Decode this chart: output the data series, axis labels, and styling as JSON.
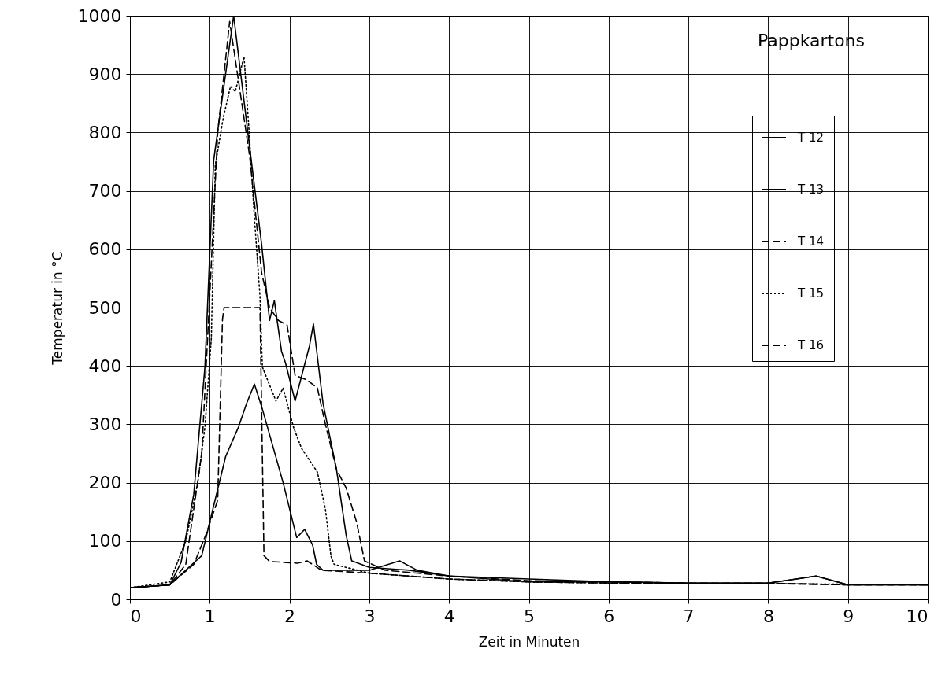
{
  "chart_data": {
    "type": "line",
    "xlabel": "Zeit in Minuten",
    "ylabel": "Temperatur in °C",
    "annotations": [
      "Pappkartons"
    ],
    "xlim": [
      0,
      10
    ],
    "xticks": [
      0,
      1,
      2,
      3,
      4,
      5,
      6,
      7,
      8,
      9,
      10
    ],
    "ylim": [
      0,
      1000
    ],
    "yticks": [
      0,
      100,
      200,
      300,
      400,
      500,
      600,
      700,
      800,
      900,
      1000
    ],
    "grid": true,
    "legend": "top right",
    "series": [
      {
        "name": "T 12",
        "color": "#000000",
        "line_style": "solid",
        "x": [
          0,
          0.5,
          0.9,
          0.97,
          1.04,
          1.2,
          1.36,
          1.46,
          1.56,
          1.66,
          1.92,
          2.09,
          2.19,
          2.29,
          2.34,
          2.42,
          3,
          3.38,
          3.6,
          4,
          4.5,
          5,
          6.2,
          7,
          8,
          8.6,
          9,
          10
        ],
        "values": [
          20,
          25,
          75,
          115,
          155,
          245,
          295,
          335,
          369,
          326,
          200,
          106,
          120,
          93,
          60,
          50,
          50,
          66,
          50,
          40,
          35,
          30,
          30,
          28,
          28,
          40,
          25,
          25
        ]
      },
      {
        "name": "T 13",
        "color": "#000000",
        "line_style": "solid",
        "x": [
          0,
          0.5,
          0.64,
          0.8,
          0.94,
          1.05,
          1.3,
          1.5,
          1.65,
          1.75,
          1.81,
          1.9,
          1.95,
          2.07,
          2.25,
          2.3,
          2.42,
          2.59,
          2.71,
          2.78,
          3,
          3.5,
          4,
          5,
          6,
          7,
          8,
          8.6,
          9,
          10
        ],
        "values": [
          20,
          25,
          63,
          180,
          398,
          753,
          1000,
          775,
          609,
          478,
          512,
          425,
          405,
          340,
          434,
          472,
          336,
          222,
          110,
          66,
          55,
          50,
          40,
          35,
          30,
          28,
          28,
          40,
          25,
          25
        ]
      },
      {
        "name": "T 14",
        "color": "#000000",
        "line_style": "dashed",
        "x": [
          0,
          0.5,
          0.7,
          0.9,
          1.0,
          1.1,
          1.25,
          1.5,
          1.65,
          1.75,
          1.86,
          1.97,
          2.07,
          2.22,
          2.35,
          2.45,
          2.59,
          2.71,
          2.84,
          2.94,
          3.2,
          4,
          5,
          6,
          7,
          8,
          9,
          10
        ],
        "values": [
          20,
          25,
          60,
          250,
          520,
          800,
          990,
          760,
          560,
          500,
          478,
          470,
          384,
          376,
          362,
          300,
          222,
          191,
          133,
          66,
          50,
          40,
          32,
          30,
          28,
          28,
          25,
          25
        ]
      },
      {
        "name": "T 15",
        "color": "#000000",
        "line_style": "dotted",
        "x": [
          0,
          0.5,
          0.7,
          0.85,
          0.94,
          1.02,
          1.07,
          1.17,
          1.26,
          1.32,
          1.43,
          1.5,
          1.56,
          1.63,
          1.66,
          1.83,
          1.92,
          2.05,
          2.15,
          2.35,
          2.45,
          2.52,
          2.56,
          3,
          4,
          5,
          6,
          8,
          10
        ],
        "values": [
          20,
          30,
          100,
          200,
          295,
          447,
          744,
          825,
          879,
          870,
          930,
          788,
          654,
          519,
          398,
          340,
          362,
          295,
          259,
          218,
          155,
          74,
          60,
          45,
          35,
          30,
          28,
          27,
          25
        ]
      },
      {
        "name": "T 16",
        "color": "#000000",
        "line_style": "dashed",
        "x": [
          0,
          0.5,
          0.8,
          0.95,
          1.1,
          1.16,
          1.18,
          1.63,
          1.68,
          1.75,
          2.1,
          2.22,
          2.4,
          3,
          4,
          5,
          6,
          7,
          8,
          9,
          10
        ],
        "values": [
          20,
          25,
          60,
          110,
          170,
          480,
          500,
          500,
          75,
          65,
          62,
          66,
          50,
          45,
          35,
          30,
          28,
          27,
          27,
          25,
          25
        ]
      }
    ]
  }
}
